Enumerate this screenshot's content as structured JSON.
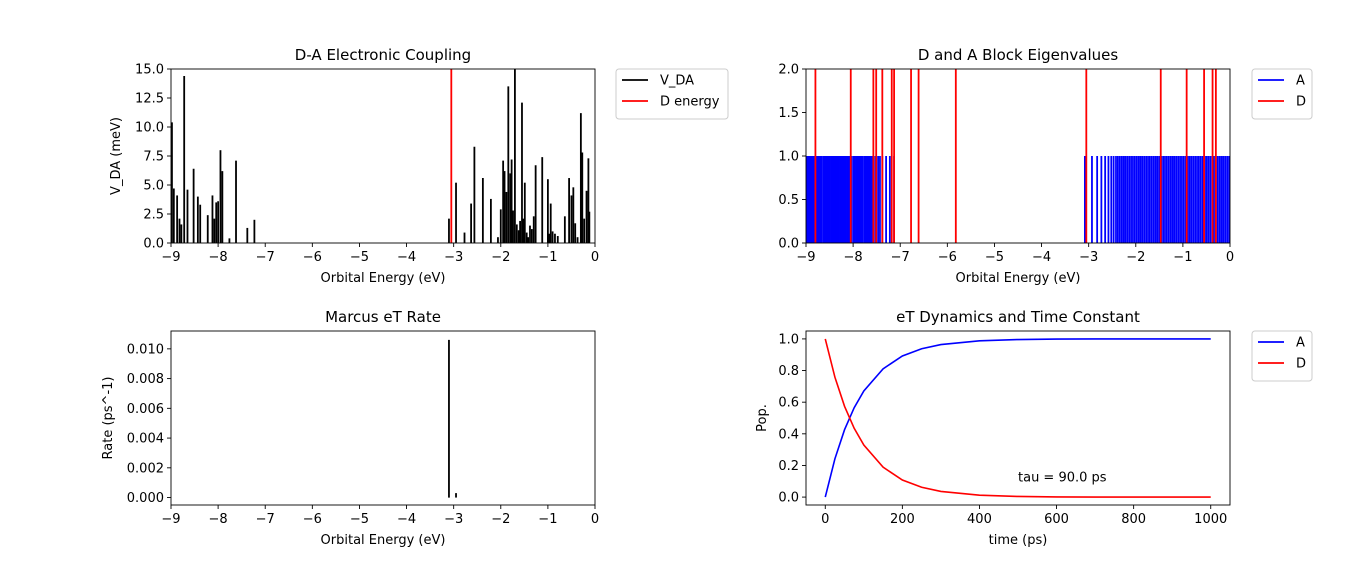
{
  "chart_data": [
    {
      "id": "coupling",
      "type": "bar",
      "title": "D-A Electronic Coupling",
      "xlabel": "Orbital Energy (eV)",
      "ylabel": "V_DA (meV)",
      "xlim": [
        -9,
        0
      ],
      "ylim": [
        0,
        15
      ],
      "xticks": [
        -9,
        -8,
        -7,
        -6,
        -5,
        -4,
        -3,
        -2,
        -1,
        0
      ],
      "xtick_labels": [
        "−9",
        "−8",
        "−7",
        "−6",
        "−5",
        "−4",
        "−3",
        "−2",
        "−1",
        "0"
      ],
      "yticks": [
        0,
        2.5,
        5,
        7.5,
        10,
        12.5,
        15
      ],
      "ytick_labels": [
        "0.0",
        "2.5",
        "5.0",
        "7.5",
        "10.0",
        "12.5",
        "15.0"
      ],
      "legend_position": "outside-right",
      "series": [
        {
          "name": "V_DA",
          "color": "#000000",
          "x": [
            -8.98,
            -8.94,
            -8.87,
            -8.82,
            -8.78,
            -8.72,
            -8.65,
            -8.52,
            -8.43,
            -8.38,
            -8.22,
            -8.12,
            -8.08,
            -8.04,
            -8.0,
            -7.95,
            -7.91,
            -7.76,
            -7.62,
            -7.38,
            -7.23,
            -3.1,
            -2.95,
            -2.77,
            -2.63,
            -2.56,
            -2.38,
            -2.21,
            -2.06,
            -2.0,
            -1.95,
            -1.92,
            -1.88,
            -1.84,
            -1.8,
            -1.77,
            -1.74,
            -1.7,
            -1.66,
            -1.62,
            -1.59,
            -1.55,
            -1.52,
            -1.49,
            -1.45,
            -1.42,
            -1.38,
            -1.34,
            -1.3,
            -1.26,
            -1.12,
            -1.0,
            -0.97,
            -0.94,
            -0.9,
            -0.85,
            -0.79,
            -0.64,
            -0.55,
            -0.5,
            -0.46,
            -0.42,
            -0.37,
            -0.3,
            -0.27,
            -0.23,
            -0.18,
            -0.14,
            -0.12
          ],
          "values": [
            10.4,
            4.7,
            4.1,
            2.1,
            1.6,
            14.4,
            4.6,
            6.4,
            4.0,
            3.3,
            2.4,
            4.1,
            2.1,
            3.5,
            3.6,
            8.0,
            6.2,
            0.4,
            7.1,
            1.3,
            2.0,
            2.1,
            5.2,
            0.9,
            3.4,
            8.3,
            5.6,
            3.8,
            0.5,
            2.9,
            7.1,
            6.2,
            4.4,
            13.5,
            6.0,
            7.2,
            2.8,
            15.0,
            1.6,
            1.1,
            1.9,
            12.1,
            2.1,
            5.2,
            0.9,
            0.5,
            1.5,
            1.2,
            2.3,
            6.7,
            7.4,
            5.5,
            0.8,
            3.4,
            1.0,
            0.8,
            0.6,
            2.3,
            5.6,
            4.1,
            4.8,
            1.7,
            0.5,
            11.2,
            7.8,
            2.1,
            4.5,
            7.3,
            2.7
          ]
        },
        {
          "name": "D energy",
          "color": "#ff0000",
          "x": [
            -3.05
          ],
          "values": [
            15
          ]
        }
      ]
    },
    {
      "id": "eigen",
      "type": "bar",
      "title": "D and A Block Eigenvalues",
      "xlabel": "Orbital Energy (eV)",
      "ylabel": "",
      "xlim": [
        -9,
        0
      ],
      "ylim": [
        0,
        2
      ],
      "xticks": [
        -9,
        -8,
        -7,
        -6,
        -5,
        -4,
        -3,
        -2,
        -1,
        0
      ],
      "xtick_labels": [
        "−9",
        "−8",
        "−7",
        "−6",
        "−5",
        "−4",
        "−3",
        "−2",
        "−1",
        "0"
      ],
      "yticks": [
        0,
        0.5,
        1,
        1.5,
        2
      ],
      "ytick_labels": [
        "0.0",
        "0.5",
        "1.0",
        "1.5",
        "2.0"
      ],
      "legend_position": "outside-right",
      "series": [
        {
          "name": "A",
          "color": "#0000ff",
          "x": [
            -8.98,
            -8.95,
            -8.93,
            -8.9,
            -8.87,
            -8.84,
            -8.81,
            -8.79,
            -8.76,
            -8.73,
            -8.7,
            -8.67,
            -8.63,
            -8.6,
            -8.57,
            -8.54,
            -8.52,
            -8.49,
            -8.46,
            -8.43,
            -8.4,
            -8.37,
            -8.34,
            -8.31,
            -8.28,
            -8.25,
            -8.22,
            -8.19,
            -8.16,
            -8.13,
            -8.1,
            -8.07,
            -8.04,
            -8.0,
            -7.97,
            -7.94,
            -7.91,
            -7.88,
            -7.85,
            -7.82,
            -7.79,
            -7.75,
            -7.72,
            -7.69,
            -7.66,
            -7.63,
            -7.6,
            -7.56,
            -7.52,
            -7.47,
            -7.43,
            -7.38,
            -7.3,
            -7.22,
            -7.13,
            -3.08,
            -2.93,
            -2.82,
            -2.73,
            -2.65,
            -2.58,
            -2.52,
            -2.47,
            -2.42,
            -2.38,
            -2.34,
            -2.3,
            -2.26,
            -2.22,
            -2.18,
            -2.14,
            -2.1,
            -2.06,
            -2.02,
            -1.98,
            -1.94,
            -1.9,
            -1.86,
            -1.82,
            -1.78,
            -1.74,
            -1.7,
            -1.66,
            -1.62,
            -1.58,
            -1.54,
            -1.5,
            -1.46,
            -1.42,
            -1.38,
            -1.34,
            -1.3,
            -1.26,
            -1.22,
            -1.18,
            -1.14,
            -1.1,
            -1.06,
            -1.02,
            -0.98,
            -0.94,
            -0.9,
            -0.86,
            -0.82,
            -0.78,
            -0.74,
            -0.7,
            -0.66,
            -0.62,
            -0.58,
            -0.54,
            -0.5,
            -0.46,
            -0.42,
            -0.38,
            -0.34,
            -0.3,
            -0.26,
            -0.22,
            -0.18,
            -0.14,
            -0.1,
            -0.06,
            -0.02
          ],
          "values": "all 1.0"
        },
        {
          "name": "D",
          "color": "#ff0000",
          "x": [
            -8.8,
            -8.05,
            -7.57,
            -7.51,
            -7.38,
            -7.18,
            -7.13,
            -6.77,
            -6.61,
            -5.82,
            -3.05,
            -1.47,
            -0.92,
            -0.55,
            -0.37,
            -0.3
          ],
          "values": "all 2.0"
        }
      ]
    },
    {
      "id": "rate",
      "type": "bar",
      "title": "Marcus eT Rate",
      "xlabel": "Orbital Energy (eV)",
      "ylabel": "Rate (ps^-1)",
      "xlim": [
        -9,
        0
      ],
      "ylim": [
        -0.0005,
        0.0112
      ],
      "xticks": [
        -9,
        -8,
        -7,
        -6,
        -5,
        -4,
        -3,
        -2,
        -1,
        0
      ],
      "xtick_labels": [
        "−9",
        "−8",
        "−7",
        "−6",
        "−5",
        "−4",
        "−3",
        "−2",
        "−1",
        "0"
      ],
      "yticks": [
        0,
        0.002,
        0.004,
        0.006,
        0.008,
        0.01
      ],
      "ytick_labels": [
        "0.000",
        "0.002",
        "0.004",
        "0.006",
        "0.008",
        "0.010"
      ],
      "series": [
        {
          "name": "",
          "color": "#000000",
          "x": [
            -3.1,
            -2.95
          ],
          "values": [
            0.0106,
            0.0003
          ]
        }
      ]
    },
    {
      "id": "dynamics",
      "type": "line",
      "title": "eT Dynamics and Time Constant",
      "xlabel": "time (ps)",
      "ylabel": "Pop.",
      "xlim": [
        -50,
        1050
      ],
      "ylim": [
        -0.05,
        1.05
      ],
      "xticks": [
        0,
        200,
        400,
        600,
        800,
        1000
      ],
      "xtick_labels": [
        "0",
        "200",
        "400",
        "600",
        "800",
        "1000"
      ],
      "yticks": [
        0,
        0.2,
        0.4,
        0.6,
        0.8,
        1
      ],
      "ytick_labels": [
        "0.0",
        "0.2",
        "0.4",
        "0.6",
        "0.8",
        "1.0"
      ],
      "legend_position": "outside-right",
      "annotation": {
        "text": "tau = 90.0 ps",
        "x": 500,
        "y": 0.1
      },
      "series": [
        {
          "name": "A",
          "color": "#0000ff",
          "x": [
            0,
            25,
            50,
            75,
            100,
            150,
            200,
            250,
            300,
            400,
            500,
            600,
            700,
            800,
            900,
            1000
          ],
          "values": [
            0,
            0.242,
            0.426,
            0.565,
            0.671,
            0.811,
            0.892,
            0.938,
            0.964,
            0.988,
            0.996,
            0.999,
            1.0,
            1.0,
            1.0,
            1.0
          ]
        },
        {
          "name": "D",
          "color": "#ff0000",
          "x": [
            0,
            25,
            50,
            75,
            100,
            150,
            200,
            250,
            300,
            400,
            500,
            600,
            700,
            800,
            900,
            1000
          ],
          "values": [
            1,
            0.758,
            0.574,
            0.435,
            0.329,
            0.189,
            0.108,
            0.062,
            0.036,
            0.012,
            0.004,
            0.001,
            0.0,
            0.0,
            0.0,
            0.0
          ]
        }
      ]
    }
  ]
}
